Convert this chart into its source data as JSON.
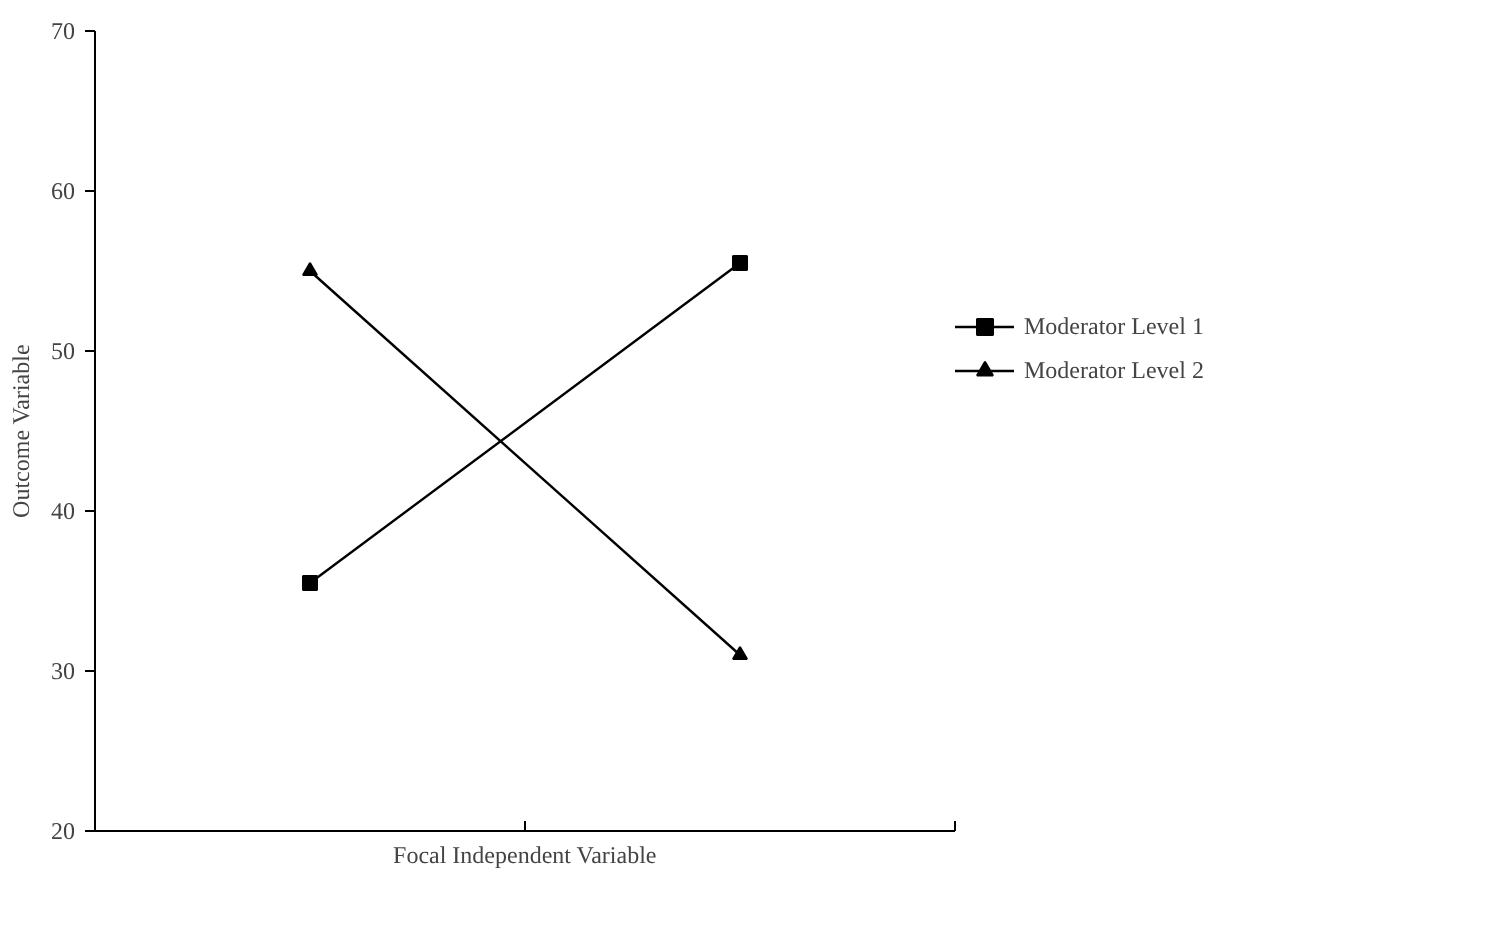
{
  "chart_data": {
    "type": "line",
    "xlabel": "Focal Independent Variable",
    "ylabel": "Outcome Variable",
    "categories": [
      null,
      null
    ],
    "ylim": [
      20,
      70
    ],
    "yticks": [
      20,
      30,
      40,
      50,
      60,
      70
    ],
    "grid": false,
    "legend": "right",
    "series": [
      {
        "name": "Moderator Level 1",
        "color": "#000000",
        "marker": "square",
        "values": [
          35.5,
          55.5
        ]
      },
      {
        "name": "Moderator Level 2",
        "color": "#000000",
        "marker": "triangle",
        "values": [
          55,
          31
        ]
      }
    ]
  }
}
